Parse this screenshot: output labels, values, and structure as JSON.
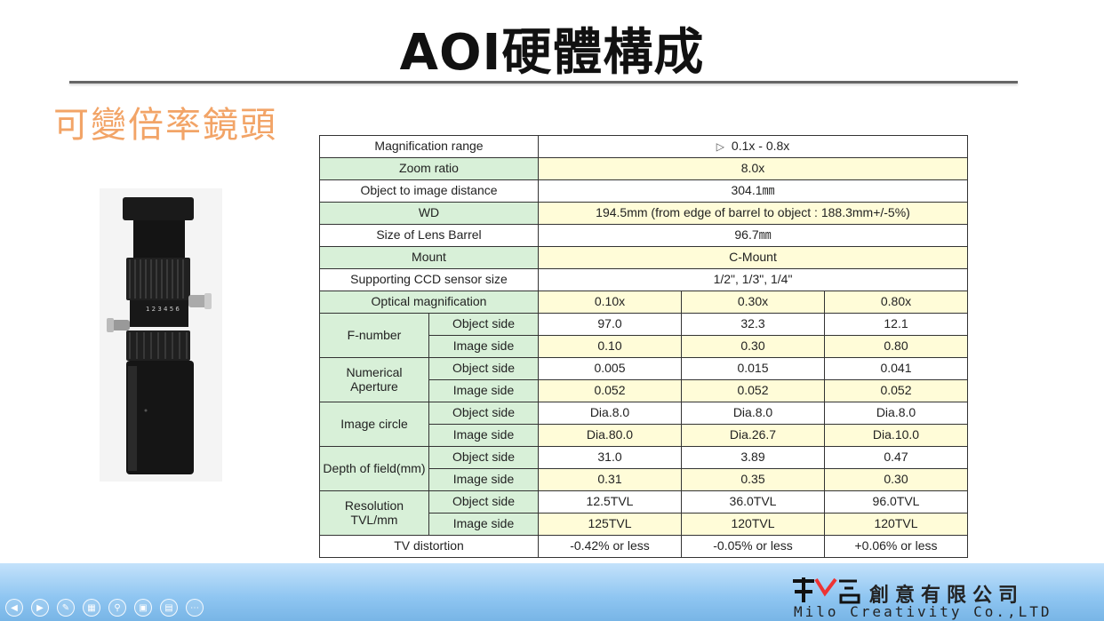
{
  "slide": {
    "title": "AOI硬體構成",
    "subtitle": "可變倍率鏡頭"
  },
  "spec_table": {
    "rows_full": [
      {
        "label": "Magnification range",
        "value": "0.1x - 0.8x"
      },
      {
        "label": "Zoom ratio",
        "value": "8.0x"
      },
      {
        "label": "Object to image distance",
        "value": "304.1㎜"
      },
      {
        "label": "WD",
        "value": "194.5mm (from edge of barrel to object : 188.3mm+/-5%)"
      },
      {
        "label": "Size of Lens Barrel",
        "value": "96.7㎜"
      },
      {
        "label": "Mount",
        "value": "C-Mount"
      },
      {
        "label": "Supporting CCD sensor size",
        "value": "1/2\", 1/3\", 1/4\""
      }
    ],
    "optical_magnification": {
      "label": "Optical magnification",
      "values": [
        "0.10x",
        "0.30x",
        "0.80x"
      ]
    },
    "groups": [
      {
        "label": "F-number",
        "rows": [
          {
            "side": "Object side",
            "values": [
              "97.0",
              "32.3",
              "12.1"
            ]
          },
          {
            "side": "Image side",
            "values": [
              "0.10",
              "0.30",
              "0.80"
            ]
          }
        ]
      },
      {
        "label": "Numerical Aperture",
        "rows": [
          {
            "side": "Object side",
            "values": [
              "0.005",
              "0.015",
              "0.041"
            ]
          },
          {
            "side": "Image side",
            "values": [
              "0.052",
              "0.052",
              "0.052"
            ]
          }
        ]
      },
      {
        "label": "Image circle",
        "rows": [
          {
            "side": "Object side",
            "values": [
              "Dia.8.0",
              "Dia.8.0",
              "Dia.8.0"
            ]
          },
          {
            "side": "Image side",
            "values": [
              "Dia.80.0",
              "Dia.26.7",
              "Dia.10.0"
            ]
          }
        ]
      },
      {
        "label": "Depth of field(mm)",
        "rows": [
          {
            "side": "Object side",
            "values": [
              "31.0",
              "3.89",
              "0.47"
            ]
          },
          {
            "side": "Image side",
            "values": [
              "0.31",
              "0.35",
              "0.30"
            ]
          }
        ]
      },
      {
        "label_line1": "Resolution",
        "label_line2": "TVL/mm",
        "rows": [
          {
            "side": "Object side",
            "values": [
              "12.5TVL",
              "36.0TVL",
              "96.0TVL"
            ]
          },
          {
            "side": "Image side",
            "values": [
              "125TVL",
              "120TVL",
              "120TVL"
            ]
          }
        ]
      }
    ],
    "tv_distortion": {
      "label": "TV distortion",
      "values": [
        "-0.42% or less",
        "-0.05% or less",
        "+0.06% or less"
      ]
    }
  },
  "footer": {
    "company_cn": "創意有限公司",
    "company_en": "Milo Creativity Co.,LTD",
    "nav_icons": [
      "prev-icon",
      "next-icon",
      "pen-icon",
      "grid-icon",
      "zoom-icon",
      "screen-icon",
      "subtitle-icon",
      "more-icon"
    ]
  },
  "colors": {
    "subtitle": "#f2a467",
    "header_cell": "#d8f0d8",
    "highlight_cell": "#fffcd8",
    "band": "#8ec5f1"
  }
}
